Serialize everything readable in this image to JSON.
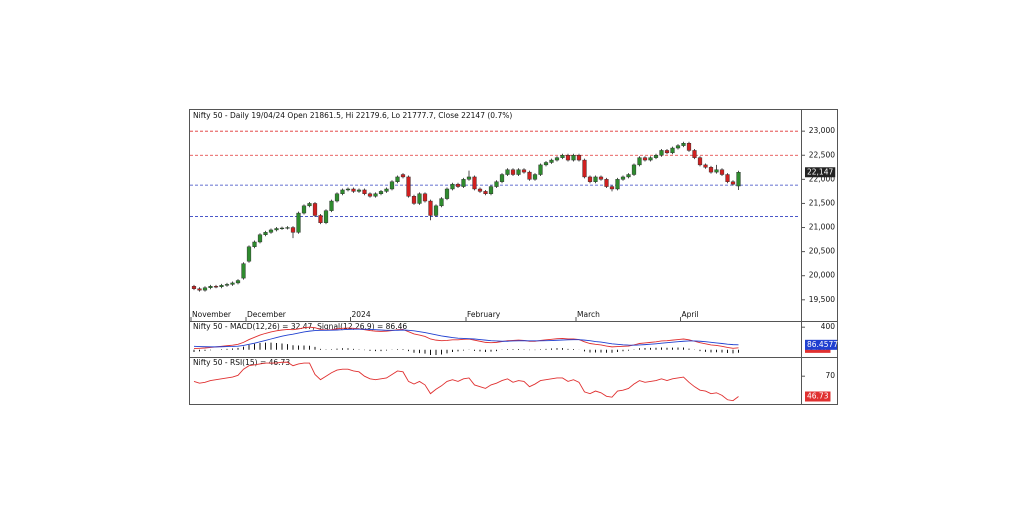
{
  "chart_data": [
    {
      "type": "candlestick",
      "title": "Nifty 50 - Daily 19/04/24 Open 21861.5, Hi 22179.6, Lo 21777.7, Close 22147 (0.7%)",
      "categories": [
        "November",
        null,
        null,
        null,
        null,
        null,
        null,
        null,
        null,
        null,
        "December",
        null,
        null,
        null,
        null,
        null,
        null,
        null,
        null,
        null,
        null,
        null,
        null,
        null,
        null,
        null,
        null,
        null,
        null,
        "2024",
        null,
        null,
        null,
        null,
        null,
        null,
        null,
        null,
        null,
        null,
        null,
        null,
        null,
        null,
        null,
        null,
        null,
        null,
        null,
        null,
        "February",
        null,
        null,
        null,
        null,
        null,
        null,
        null,
        null,
        null,
        null,
        null,
        null,
        null,
        null,
        null,
        null,
        null,
        null,
        null,
        "March",
        null,
        null,
        null,
        null,
        null,
        null,
        null,
        null,
        null,
        null,
        null,
        null,
        null,
        null,
        null,
        null,
        null,
        null,
        "April",
        null,
        null,
        null,
        null,
        null,
        null,
        null,
        null,
        null,
        null
      ],
      "open": [
        19780,
        19730,
        19700,
        19750,
        19780,
        19770,
        19800,
        19820,
        19850,
        19950,
        20300,
        20600,
        20700,
        20850,
        20900,
        20950,
        20980,
        20990,
        21000,
        20900,
        21300,
        21450,
        21500,
        21250,
        21100,
        21350,
        21550,
        21700,
        21780,
        21800,
        21750,
        21780,
        21700,
        21650,
        21700,
        21750,
        21800,
        21950,
        22100,
        22050,
        21650,
        21500,
        21700,
        21550,
        21250,
        21450,
        21600,
        21800,
        21900,
        21850,
        22000,
        22050,
        21800,
        21750,
        21700,
        21850,
        21950,
        22100,
        22200,
        22100,
        22200,
        22150,
        22000,
        22100,
        22300,
        22350,
        22400,
        22450,
        22500,
        22400,
        22500,
        22400,
        22050,
        21950,
        22050,
        22000,
        21850,
        21800,
        22000,
        22050,
        22100,
        22300,
        22450,
        22400,
        22450,
        22500,
        22600,
        22550,
        22650,
        22700,
        22750,
        22600,
        22450,
        22300,
        22250,
        22150,
        22200,
        22100,
        21950,
        21861.5
      ],
      "high": [
        19810,
        19760,
        19780,
        19810,
        19810,
        19830,
        19850,
        19880,
        19930,
        20280,
        20630,
        20730,
        20880,
        20930,
        20980,
        21010,
        21020,
        21030,
        21030,
        21330,
        21480,
        21530,
        21530,
        21280,
        21380,
        21580,
        21730,
        21810,
        21830,
        21830,
        21810,
        21810,
        21730,
        21730,
        21780,
        21830,
        21980,
        22080,
        22130,
        22080,
        21680,
        21730,
        21730,
        21580,
        21480,
        21630,
        21830,
        21930,
        21930,
        22030,
        22180,
        22080,
        21830,
        21780,
        21880,
        21980,
        22130,
        22230,
        22230,
        22230,
        22230,
        22180,
        22130,
        22330,
        22380,
        22430,
        22480,
        22530,
        22530,
        22530,
        22530,
        22430,
        22080,
        22080,
        22080,
        22030,
        21880,
        22030,
        22080,
        22130,
        22330,
        22480,
        22480,
        22480,
        22530,
        22630,
        22630,
        22680,
        22730,
        22780,
        22780,
        22630,
        22480,
        22330,
        22280,
        22300,
        22230,
        22130,
        21980,
        22179.6
      ],
      "low": [
        19700,
        19670,
        19670,
        19720,
        19740,
        19740,
        19770,
        19790,
        19820,
        19920,
        20270,
        20570,
        20670,
        20820,
        20870,
        20920,
        20950,
        20960,
        20780,
        20870,
        21270,
        21420,
        21220,
        21070,
        21070,
        21320,
        21520,
        21670,
        21750,
        21720,
        21720,
        21670,
        21620,
        21620,
        21670,
        21720,
        21770,
        21920,
        22020,
        21620,
        21470,
        21470,
        21520,
        21150,
        21220,
        21420,
        21570,
        21770,
        21820,
        21820,
        21970,
        21770,
        21720,
        21670,
        21670,
        21820,
        21920,
        22070,
        22070,
        22070,
        22120,
        21970,
        21970,
        22070,
        22270,
        22320,
        22370,
        22420,
        22370,
        22370,
        22370,
        22020,
        21920,
        21920,
        21970,
        21820,
        21750,
        21770,
        21970,
        22020,
        22070,
        22270,
        22370,
        22370,
        22420,
        22470,
        22520,
        22520,
        22620,
        22670,
        22570,
        22420,
        22270,
        22220,
        22120,
        22120,
        22070,
        21920,
        21870,
        21777.7
      ],
      "close": [
        19730,
        19700,
        19750,
        19780,
        19770,
        19800,
        19820,
        19850,
        19900,
        20250,
        20600,
        20700,
        20850,
        20900,
        20950,
        20980,
        20990,
        21000,
        20900,
        21300,
        21450,
        21500,
        21250,
        21100,
        21350,
        21550,
        21700,
        21780,
        21800,
        21750,
        21780,
        21700,
        21650,
        21700,
        21750,
        21800,
        21950,
        22050,
        22050,
        21650,
        21500,
        21700,
        21550,
        21250,
        21450,
        21600,
        21800,
        21900,
        21850,
        22000,
        22050,
        21800,
        21750,
        21700,
        21850,
        21950,
        22100,
        22200,
        22100,
        22200,
        22150,
        22000,
        22100,
        22300,
        22350,
        22400,
        22450,
        22500,
        22400,
        22500,
        22400,
        22050,
        21950,
        22050,
        22000,
        21850,
        21800,
        22000,
        22050,
        22100,
        22300,
        22450,
        22400,
        22450,
        22500,
        22600,
        22550,
        22650,
        22700,
        22750,
        22600,
        22450,
        22300,
        22250,
        22150,
        22200,
        22100,
        21950,
        21900,
        22147
      ],
      "up_color": "#2e8b2e",
      "down_color": "#d02020",
      "last_label": "22,147",
      "ylim": [
        19060,
        23460
      ],
      "yticks": [
        {
          "value": 19500,
          "label": "19,500"
        },
        {
          "value": 20000,
          "label": "20,000"
        },
        {
          "value": 20500,
          "label": "20,500"
        },
        {
          "value": 21000,
          "label": "21,000"
        },
        {
          "value": 21500,
          "label": "21,500"
        },
        {
          "value": 22000,
          "label": "22,000"
        },
        {
          "value": 22500,
          "label": "22,500"
        },
        {
          "value": 23000,
          "label": "23,000"
        }
      ],
      "levels": [
        {
          "value": 23000,
          "color": "#e03030"
        },
        {
          "value": 22500,
          "color": "#e03030"
        },
        {
          "value": 21880,
          "color": "#3040c0"
        },
        {
          "value": 21230,
          "color": "#3040c0"
        }
      ]
    },
    {
      "type": "line",
      "title": "Nifty 50 - MACD(12,26) = 32.47, Signal(12,26,9) = 86.46",
      "series": [
        {
          "color": "#e03030",
          "last_label": "32.47",
          "values": [
            20,
            25,
            30,
            40,
            50,
            60,
            70,
            80,
            95,
            130,
            180,
            220,
            260,
            290,
            315,
            335,
            350,
            360,
            355,
            370,
            390,
            400,
            390,
            360,
            350,
            355,
            370,
            380,
            385,
            380,
            370,
            355,
            340,
            330,
            325,
            330,
            340,
            355,
            360,
            320,
            280,
            260,
            235,
            190,
            170,
            160,
            165,
            175,
            175,
            185,
            190,
            170,
            150,
            130,
            125,
            130,
            145,
            160,
            165,
            170,
            165,
            150,
            150,
            165,
            175,
            185,
            195,
            200,
            190,
            190,
            180,
            140,
            110,
            95,
            85,
            65,
            50,
            55,
            60,
            65,
            85,
            110,
            120,
            130,
            140,
            155,
            160,
            170,
            180,
            190,
            175,
            150,
            125,
            105,
            85,
            75,
            60,
            40,
            25,
            32.47
          ]
        },
        {
          "color": "#2040d0",
          "last_label": "86.4577",
          "values": [
            60,
            55,
            52,
            50,
            50,
            52,
            55,
            58,
            63,
            75,
            95,
            115,
            140,
            165,
            190,
            215,
            240,
            260,
            275,
            295,
            315,
            330,
            340,
            345,
            345,
            347,
            350,
            355,
            360,
            365,
            365,
            363,
            360,
            355,
            350,
            345,
            345,
            345,
            350,
            345,
            335,
            320,
            305,
            285,
            265,
            245,
            230,
            215,
            205,
            200,
            195,
            190,
            180,
            170,
            160,
            155,
            150,
            150,
            155,
            158,
            160,
            158,
            157,
            158,
            160,
            163,
            168,
            172,
            175,
            178,
            178,
            170,
            160,
            145,
            135,
            120,
            105,
            95,
            87,
            82,
            80,
            85,
            90,
            97,
            105,
            115,
            125,
            133,
            142,
            150,
            155,
            155,
            150,
            143,
            132,
            120,
            110,
            98,
            90,
            86.46
          ]
        }
      ],
      "histogram": {
        "color": "#111111",
        "values": [
          -40,
          -30,
          -22,
          -10,
          0,
          8,
          15,
          22,
          32,
          55,
          85,
          105,
          120,
          125,
          125,
          120,
          110,
          100,
          80,
          75,
          75,
          70,
          50,
          15,
          5,
          8,
          20,
          25,
          25,
          15,
          5,
          -8,
          -20,
          -25,
          -25,
          -15,
          -5,
          10,
          10,
          -25,
          -55,
          -60,
          -70,
          -95,
          -95,
          -85,
          -65,
          -40,
          -30,
          -15,
          -5,
          -20,
          -30,
          -40,
          -35,
          -25,
          -5,
          10,
          10,
          12,
          5,
          -8,
          -7,
          7,
          15,
          22,
          27,
          28,
          15,
          12,
          2,
          -30,
          -50,
          -50,
          -50,
          -55,
          -55,
          -40,
          -27,
          -17,
          5,
          25,
          30,
          33,
          35,
          40,
          35,
          37,
          38,
          40,
          20,
          -5,
          -25,
          -38,
          -47,
          -45,
          -50,
          -58,
          -65,
          -53.99
        ]
      },
      "ylim": [
        -130,
        510
      ],
      "yticks": [
        400
      ]
    },
    {
      "type": "line",
      "title": "Nifty 50 - RSI(15) = 46.73",
      "series": [
        {
          "color": "#e03030",
          "last_label": "46.73",
          "values": [
            64,
            62,
            63,
            65,
            66,
            67,
            68,
            69,
            71,
            78,
            82,
            83,
            84,
            85,
            85,
            85,
            86,
            86,
            82,
            84,
            85,
            85,
            72,
            66,
            70,
            74,
            77,
            78,
            78,
            76,
            75,
            70,
            67,
            66,
            67,
            68,
            72,
            76,
            75,
            64,
            61,
            64,
            60,
            50,
            55,
            59,
            64,
            66,
            64,
            67,
            68,
            60,
            58,
            56,
            60,
            62,
            65,
            67,
            63,
            65,
            64,
            58,
            61,
            65,
            66,
            67,
            68,
            68,
            64,
            66,
            63,
            52,
            50,
            53,
            51,
            47,
            46,
            53,
            54,
            56,
            61,
            65,
            63,
            64,
            65,
            67,
            65,
            67,
            68,
            69,
            63,
            58,
            54,
            53,
            50,
            51,
            48,
            43,
            42,
            46.73
          ]
        }
      ],
      "ylim": [
        37,
        92
      ],
      "yticks": [
        70
      ]
    }
  ]
}
